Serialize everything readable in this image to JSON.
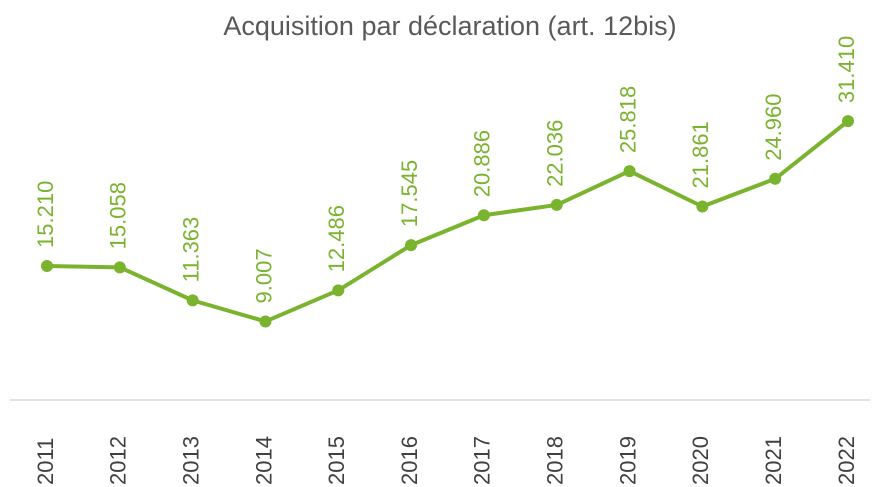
{
  "chart_data": {
    "type": "line",
    "title": "Acquisition par déclaration (art. 12bis)",
    "categories": [
      "2011",
      "2012",
      "2013",
      "2014",
      "2015",
      "2016",
      "2017",
      "2018",
      "2019",
      "2020",
      "2021",
      "2022"
    ],
    "series": [
      {
        "color": "#7ab32e",
        "values": [
          15210,
          15058,
          11363,
          9007,
          12486,
          17545,
          20886,
          22036,
          25818,
          21861,
          24960,
          31410
        ],
        "value_labels": [
          "15.210",
          "15.058",
          "11.363",
          "9.007",
          "12.486",
          "17.545",
          "20.886",
          "22.036",
          "25.818",
          "21.861",
          "24.960",
          "31.410"
        ]
      }
    ],
    "ylim": [
      0,
      35000
    ]
  }
}
